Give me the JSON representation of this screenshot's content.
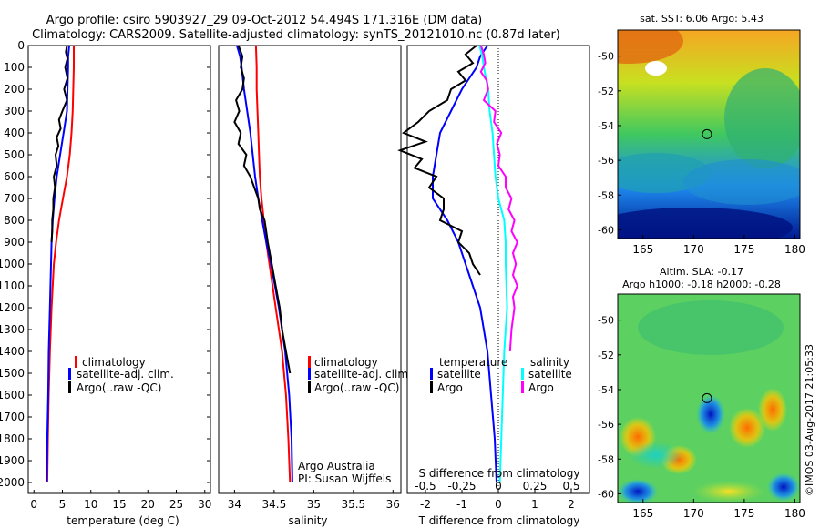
{
  "header": {
    "line1": "Argo profile: csiro 5903927_29 09-Oct-2012 54.494S 171.316E (DM data)",
    "line2": "Climatology: CARS2009. Satellite-adjusted climatology: synTS_20121010.nc (0.87d later)"
  },
  "watermark": "©IMOS 03-Aug-2017 21:05:33",
  "colors": {
    "climatology": "#ff0000",
    "satellite": "#0000ff",
    "argo": "#000000",
    "cyan": "#00ffff",
    "magenta": "#ff00ff"
  },
  "chart_data": [
    {
      "id": "temperature",
      "type": "line",
      "xlabel": "temperature (deg C)",
      "ylabel": "",
      "xlim": [
        -1,
        31
      ],
      "ylim": [
        2050,
        0
      ],
      "xticks": [
        0,
        5,
        10,
        15,
        20,
        25,
        30
      ],
      "yticks": [
        0,
        100,
        200,
        300,
        400,
        500,
        600,
        700,
        800,
        900,
        1000,
        1100,
        1200,
        1300,
        1400,
        1500,
        1600,
        1700,
        1800,
        1900,
        2000
      ],
      "legend": [
        "climatology",
        "satellite-adj. clim.",
        "Argo(..raw -QC)"
      ],
      "series": [
        {
          "name": "climatology",
          "color": "#ff0000",
          "depth": [
            0,
            100,
            200,
            300,
            400,
            500,
            600,
            700,
            800,
            900,
            1000,
            1200,
            1400,
            1600,
            1800,
            2000
          ],
          "values": [
            7.0,
            7.0,
            6.9,
            6.8,
            6.6,
            6.3,
            5.8,
            5.1,
            4.4,
            3.9,
            3.5,
            3.1,
            2.8,
            2.6,
            2.45,
            2.35
          ]
        },
        {
          "name": "satellite-adj. clim.",
          "color": "#0000ff",
          "depth": [
            0,
            50,
            100,
            200,
            300,
            400,
            500,
            600,
            700,
            800,
            900,
            1000,
            1200,
            1400,
            1600,
            1800,
            2000
          ],
          "values": [
            6.2,
            6.0,
            6.0,
            5.9,
            5.8,
            5.2,
            4.6,
            4.0,
            3.6,
            3.3,
            3.1,
            3.0,
            2.8,
            2.6,
            2.5,
            2.35,
            2.25
          ]
        },
        {
          "name": "Argo",
          "color": "#000000",
          "depth": [
            0,
            30,
            60,
            100,
            150,
            200,
            250,
            300,
            340,
            380,
            420,
            460,
            500,
            550,
            600,
            650,
            700,
            750,
            800,
            850,
            900
          ],
          "values": [
            5.8,
            5.6,
            5.9,
            5.5,
            5.9,
            5.3,
            5.8,
            5.0,
            4.4,
            4.7,
            4.0,
            4.3,
            3.8,
            4.0,
            3.5,
            3.7,
            3.4,
            3.4,
            3.2,
            3.2,
            3.1
          ]
        }
      ]
    },
    {
      "id": "salinity",
      "type": "line",
      "xlabel": "salinity",
      "xlim": [
        33.8,
        36.1
      ],
      "ylim": [
        2050,
        0
      ],
      "xticks": [
        34,
        34.5,
        35,
        35.5,
        36
      ],
      "legend": [
        "climatology",
        "satellite-adj. clim.",
        "Argo(..raw -QC)"
      ],
      "annotation": [
        "Argo Australia",
        "PI: Susan Wijffels"
      ],
      "series": [
        {
          "name": "climatology",
          "color": "#ff0000",
          "depth": [
            0,
            100,
            200,
            300,
            400,
            500,
            600,
            700,
            800,
            900,
            1000,
            1200,
            1400,
            1600,
            1800,
            2000
          ],
          "values": [
            34.27,
            34.28,
            34.28,
            34.29,
            34.3,
            34.31,
            34.32,
            34.34,
            34.37,
            34.4,
            34.44,
            34.52,
            34.6,
            34.65,
            34.68,
            34.7
          ]
        },
        {
          "name": "satellite-adj. clim.",
          "color": "#0000ff",
          "depth": [
            0,
            50,
            100,
            200,
            300,
            400,
            500,
            600,
            700,
            800,
            900,
            1000,
            1200,
            1400,
            1600,
            1800,
            2000
          ],
          "values": [
            34.03,
            34.07,
            34.09,
            34.12,
            34.16,
            34.2,
            34.23,
            34.26,
            34.3,
            34.35,
            34.4,
            34.46,
            34.56,
            34.64,
            34.69,
            34.72,
            34.73
          ]
        },
        {
          "name": "Argo",
          "color": "#000000",
          "depth": [
            0,
            50,
            100,
            150,
            200,
            250,
            300,
            350,
            400,
            450,
            500,
            550,
            600,
            650,
            700,
            750,
            800,
            850,
            900,
            1000,
            1100,
            1200,
            1300,
            1400,
            1500
          ],
          "values": [
            34.05,
            34.1,
            34.08,
            34.12,
            34.1,
            34.02,
            34.06,
            34.0,
            34.08,
            34.05,
            34.15,
            34.12,
            34.2,
            34.25,
            34.3,
            34.32,
            34.38,
            34.4,
            34.42,
            34.47,
            34.52,
            34.57,
            34.6,
            34.65,
            34.7
          ]
        }
      ]
    },
    {
      "id": "difference",
      "type": "line",
      "xlabel": "T difference from climatology",
      "xlabel2": "S difference from climatology",
      "xlim": [
        -2.5,
        2.5
      ],
      "ylim": [
        2050,
        0
      ],
      "xticks": [
        -2,
        -1,
        0,
        1,
        2
      ],
      "x2ticks": [
        "-0.5",
        "-0.25",
        "0",
        "0.25",
        "0.5"
      ],
      "legend_t": [
        "temperature",
        "satellite",
        "Argo"
      ],
      "legend_s": [
        "salinity",
        "satellite",
        "Argo"
      ],
      "series": [
        {
          "name": "T satellite",
          "color": "#0000ff",
          "depth": [
            0,
            50,
            100,
            200,
            300,
            400,
            500,
            600,
            700,
            800,
            900,
            1000,
            1200,
            1400,
            1600,
            1800,
            2000
          ],
          "values": [
            -0.3,
            -0.5,
            -0.6,
            -1.0,
            -1.3,
            -1.6,
            -1.7,
            -1.8,
            -1.8,
            -1.4,
            -1.1,
            -0.9,
            -0.5,
            -0.3,
            -0.2,
            -0.1,
            -0.05
          ]
        },
        {
          "name": "T Argo",
          "color": "#000000",
          "depth": [
            0,
            40,
            80,
            120,
            160,
            200,
            250,
            300,
            350,
            400,
            440,
            480,
            520,
            560,
            600,
            650,
            700,
            750,
            800,
            850,
            900,
            950,
            1000,
            1050
          ],
          "values": [
            -0.6,
            -0.9,
            -0.7,
            -1.1,
            -0.9,
            -1.3,
            -1.4,
            -1.9,
            -2.2,
            -2.6,
            -2.0,
            -2.7,
            -2.1,
            -2.3,
            -1.7,
            -1.9,
            -1.5,
            -1.5,
            -1.6,
            -1.0,
            -1.1,
            -0.8,
            -0.7,
            -0.5
          ]
        },
        {
          "name": "S satellite",
          "color": "#00ffff",
          "depth": [
            0,
            50,
            100,
            200,
            300,
            400,
            500,
            600,
            700,
            800,
            900,
            1000,
            1200,
            1400,
            1600,
            1800,
            2000
          ],
          "values": [
            -0.13,
            -0.11,
            -0.1,
            -0.07,
            -0.06,
            -0.04,
            -0.03,
            -0.02,
            0.0,
            0.04,
            0.05,
            0.05,
            0.06,
            0.04,
            0.03,
            0.02,
            0.01
          ]
        },
        {
          "name": "S Argo",
          "color": "#ff00ff",
          "depth": [
            0,
            40,
            80,
            120,
            160,
            200,
            250,
            300,
            350,
            400,
            450,
            500,
            550,
            600,
            650,
            700,
            750,
            800,
            850,
            900,
            950,
            1000,
            1050,
            1100,
            1150,
            1200,
            1300,
            1400
          ],
          "values": [
            -0.12,
            -0.1,
            -0.09,
            -0.12,
            -0.08,
            -0.07,
            -0.1,
            -0.02,
            -0.03,
            0.02,
            -0.01,
            0.01,
            0.0,
            0.05,
            0.05,
            0.09,
            0.07,
            0.11,
            0.09,
            0.13,
            0.1,
            0.12,
            0.1,
            0.13,
            0.1,
            0.11,
            0.09,
            0.08
          ]
        }
      ]
    },
    {
      "id": "sst_map",
      "type": "heatmap",
      "title": "sat. SST: 6.06 Argo: 5.43",
      "xlim": [
        162.5,
        180.5
      ],
      "ylim": [
        -60.5,
        -48.5
      ],
      "xticks": [
        165,
        170,
        175,
        180
      ],
      "yticks": [
        -50,
        -52,
        -54,
        -56,
        -58,
        -60
      ],
      "marker_lon": 171.316,
      "marker_lat": -54.494
    },
    {
      "id": "sla_map",
      "type": "heatmap",
      "title_line1": "Altim. SLA: -0.17",
      "title_line2": "Argo h1000: -0.18 h2000: -0.28",
      "xlim": [
        162.5,
        180.5
      ],
      "ylim": [
        -60.5,
        -48.5
      ],
      "xticks": [
        165,
        170,
        175,
        180
      ],
      "yticks": [
        -50,
        -52,
        -54,
        -56,
        -58,
        -60
      ],
      "marker_lon": 171.316,
      "marker_lat": -54.494
    }
  ]
}
